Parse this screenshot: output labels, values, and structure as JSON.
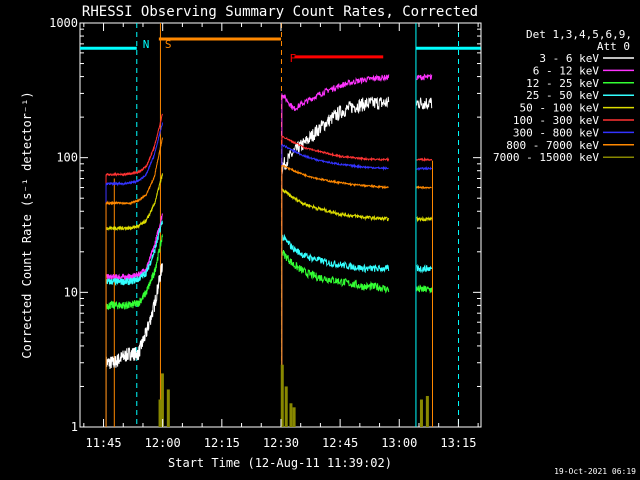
{
  "chart_data": {
    "type": "line",
    "title": "RHESSI Observing Summary Count Rates, Corrected",
    "xlabel": "Start Time (12-Aug-11 11:39:02)",
    "ylabel": "Corrected Count Rate (s⁻¹ detector⁻¹)",
    "yscale": "log",
    "ylim": [
      1,
      1000
    ],
    "xlim_minutes": [
      0,
      101.7
    ],
    "x_ticks": [
      {
        "label": "11:45",
        "t": 5.97
      },
      {
        "label": "12:00",
        "t": 20.97
      },
      {
        "label": "12:15",
        "t": 35.97
      },
      {
        "label": "12:30",
        "t": 50.97
      },
      {
        "label": "12:45",
        "t": 65.97
      },
      {
        "label": "13:00",
        "t": 80.97
      },
      {
        "label": "13:15",
        "t": 95.97
      }
    ],
    "y_ticks": [
      {
        "label": "1",
        "v": 1
      },
      {
        "label": "10",
        "v": 10
      },
      {
        "label": "100",
        "v": 100
      },
      {
        "label": "1000",
        "v": 1000
      }
    ],
    "legend_header": [
      "Det 1,3,4,5,6,9,",
      "Att 0"
    ],
    "series": [
      {
        "name": "3 - 6 keV",
        "color": "#ffffff",
        "noise": 0.12,
        "seg1": [
          3,
          3,
          3.3,
          3.5,
          3.5,
          5,
          8,
          16
        ],
        "seg2": [
          85,
          110,
          130,
          160,
          190,
          220,
          240,
          250,
          255,
          255
        ]
      },
      {
        "name": "6 - 12 keV",
        "color": "#ff33ff",
        "noise": 0.05,
        "seg1": [
          13,
          13,
          13,
          13,
          13.5,
          15,
          22,
          38
        ],
        "seg2": [
          300,
          230,
          260,
          290,
          320,
          345,
          365,
          380,
          390,
          395
        ]
      },
      {
        "name": "12 - 25 keV",
        "color": "#33ff33",
        "noise": 0.07,
        "seg1": [
          8,
          8,
          8,
          8,
          8.3,
          10,
          14,
          26
        ],
        "seg2": [
          20,
          16,
          14,
          13,
          12.5,
          12,
          11.5,
          11,
          11,
          10.5
        ]
      },
      {
        "name": "25 - 50 keV",
        "color": "#33ffff",
        "noise": 0.06,
        "seg1": [
          12,
          12,
          12,
          12,
          12.5,
          14,
          20,
          34
        ],
        "seg2": [
          26,
          21,
          18.5,
          17.5,
          16.5,
          16,
          15.5,
          15,
          15,
          15
        ]
      },
      {
        "name": "50 - 100 keV",
        "color": "#dddd00",
        "noise": 0.03,
        "seg1": [
          30,
          30,
          30,
          30,
          31,
          34,
          45,
          75
        ],
        "seg2": [
          58,
          50,
          45,
          42,
          40,
          38,
          37,
          36,
          35.5,
          35
        ]
      },
      {
        "name": "100 - 300 keV",
        "color": "#ff3333",
        "noise": 0.015,
        "seg1": [
          75,
          75,
          75,
          76,
          78,
          86,
          120,
          210
        ],
        "seg2": [
          145,
          130,
          118,
          112,
          107,
          102,
          100,
          98,
          97,
          97
        ]
      },
      {
        "name": "300 - 800 keV",
        "color": "#3333ff",
        "noise": 0.015,
        "seg1": [
          64,
          64,
          64,
          65,
          67,
          75,
          105,
          180
        ],
        "seg2": [
          125,
          112,
          102,
          96,
          92,
          89,
          87,
          85,
          84,
          83
        ]
      },
      {
        "name": "800 - 7000 keV",
        "color": "#ff8800",
        "noise": 0.015,
        "seg1": [
          46,
          46,
          46,
          46,
          48,
          53,
          72,
          140
        ],
        "seg2": [
          88,
          80,
          74,
          70,
          67,
          65,
          63,
          62,
          61,
          60
        ]
      },
      {
        "name": "7000 - 15000 keV",
        "color": "#888800",
        "noise": 0,
        "seg1": [],
        "seg2": []
      }
    ],
    "annotations": [
      {
        "label": "N",
        "color": "#00ffff",
        "t": 14.4
      },
      {
        "label": "S",
        "color": "#ff8800",
        "t": 20.0
      },
      {
        "label": "F",
        "color": "#ff0000",
        "t": 51.6
      }
    ],
    "timestamp": "19-Oct-2021 06:19"
  }
}
